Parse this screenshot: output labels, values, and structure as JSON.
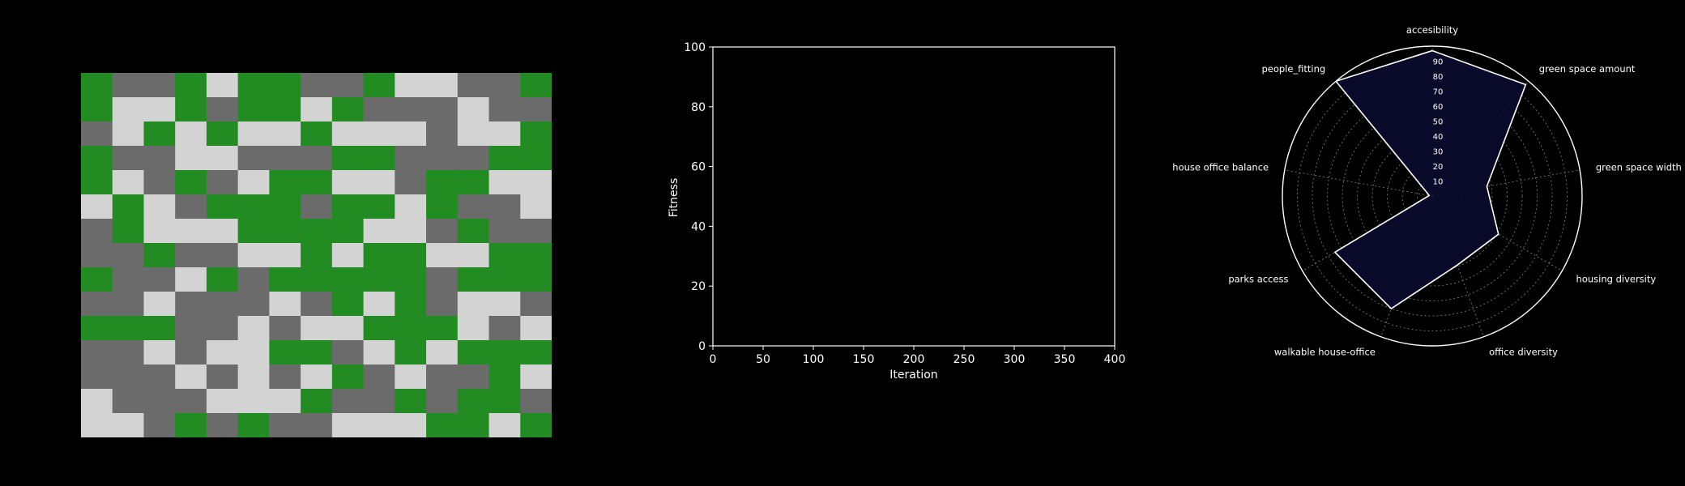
{
  "colors": {
    "background": "#000000",
    "green": "#228b22",
    "dark": "#6b6b6b",
    "light": "#d3d3d3",
    "axis": "#ffffff",
    "radar_fill": "#0a0a2e"
  },
  "chart_data": [
    {
      "type": "heatmap",
      "legend_map": {
        "0": "green",
        "1": "dark",
        "2": "light"
      },
      "matrix": [
        [
          0,
          1,
          1,
          0,
          2,
          0,
          0,
          1,
          1,
          0,
          2,
          2,
          1,
          1,
          0
        ],
        [
          0,
          2,
          2,
          0,
          1,
          0,
          0,
          2,
          0,
          1,
          1,
          1,
          2,
          1,
          1
        ],
        [
          1,
          2,
          0,
          2,
          0,
          2,
          2,
          0,
          2,
          2,
          2,
          1,
          2,
          2,
          0
        ],
        [
          0,
          1,
          1,
          2,
          2,
          1,
          1,
          1,
          0,
          0,
          1,
          1,
          1,
          0,
          0
        ],
        [
          0,
          2,
          1,
          0,
          1,
          2,
          0,
          0,
          2,
          2,
          1,
          0,
          0,
          2,
          2
        ],
        [
          2,
          0,
          2,
          1,
          0,
          0,
          0,
          1,
          0,
          0,
          2,
          0,
          1,
          1,
          2
        ],
        [
          1,
          0,
          2,
          2,
          2,
          0,
          0,
          0,
          0,
          2,
          2,
          1,
          0,
          1,
          1
        ],
        [
          1,
          1,
          0,
          1,
          1,
          2,
          2,
          0,
          2,
          0,
          0,
          2,
          2,
          0,
          0
        ],
        [
          0,
          1,
          1,
          2,
          0,
          1,
          0,
          0,
          0,
          0,
          0,
          1,
          0,
          0,
          0
        ],
        [
          1,
          1,
          2,
          1,
          1,
          1,
          2,
          1,
          0,
          2,
          0,
          1,
          2,
          2,
          1
        ],
        [
          0,
          0,
          0,
          1,
          1,
          2,
          1,
          2,
          2,
          0,
          0,
          0,
          2,
          1,
          2
        ],
        [
          1,
          1,
          2,
          1,
          2,
          2,
          0,
          0,
          1,
          2,
          0,
          2,
          0,
          0,
          0
        ],
        [
          1,
          1,
          1,
          2,
          1,
          2,
          1,
          2,
          0,
          1,
          2,
          1,
          1,
          0,
          2
        ],
        [
          2,
          1,
          1,
          1,
          2,
          2,
          2,
          0,
          1,
          1,
          0,
          1,
          0,
          0,
          1
        ],
        [
          2,
          2,
          1,
          0,
          1,
          0,
          1,
          1,
          2,
          2,
          2,
          0,
          0,
          2,
          0
        ]
      ]
    },
    {
      "type": "line",
      "xlabel": "Iteration",
      "ylabel": "Fitness",
      "xlim": [
        0,
        400
      ],
      "ylim": [
        0,
        100
      ],
      "xticks": [
        "0",
        "50",
        "100",
        "150",
        "200",
        "250",
        "300",
        "350",
        "400"
      ],
      "yticks": [
        "0",
        "20",
        "40",
        "60",
        "80",
        "100"
      ],
      "series": []
    },
    {
      "type": "radar",
      "rmax": 100,
      "rticks": [
        "10",
        "20",
        "30",
        "40",
        "50",
        "60",
        "70",
        "80",
        "90"
      ],
      "axes": [
        "accesibility",
        "green space amount",
        "green space width",
        "housing diversity",
        "office diversity",
        "walkable house-office",
        "parks access",
        "house office balance",
        "people_fitting"
      ],
      "values": [
        97,
        97,
        37,
        51,
        49,
        80,
        75,
        2,
        100
      ]
    }
  ]
}
